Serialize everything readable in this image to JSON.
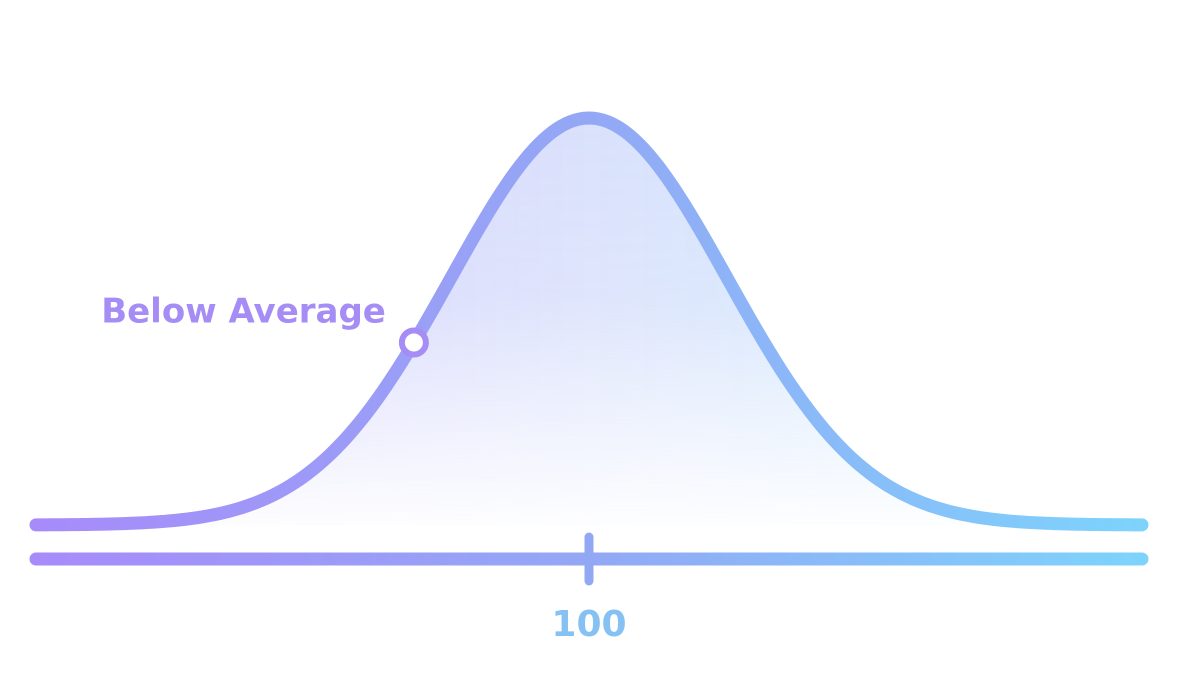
{
  "chart_data": {
    "type": "area",
    "distribution": "normal",
    "mean": 100,
    "std_dev": 15,
    "xlim": [
      40,
      160
    ],
    "grid": false,
    "legend": "none",
    "ticks": [
      {
        "value": 100,
        "label": "100"
      }
    ],
    "markers": [
      {
        "label": "Below Average",
        "x": 81
      }
    ],
    "colors": {
      "gradient_start": "#a78bfa",
      "gradient_mid": "#93a8f5",
      "gradient_end": "#7dd3fc",
      "marker_label": "#a58df5",
      "tick_label": "#85c1f3"
    }
  }
}
